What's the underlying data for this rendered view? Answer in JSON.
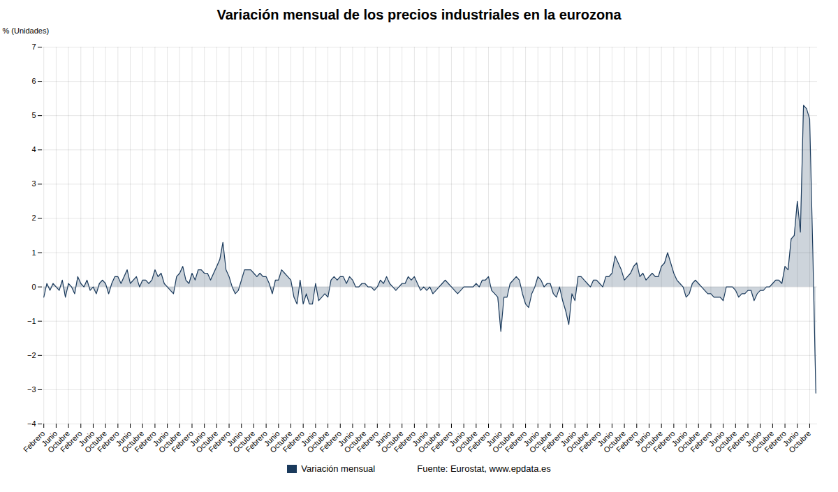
{
  "chart_data": {
    "type": "area",
    "title": "Variación mensual de los precios industriales en la eurozona",
    "ylabel": "% (Unidades)",
    "ylim": [
      -4,
      7
    ],
    "yticks": [
      -4,
      -3,
      -2,
      -1,
      0,
      1,
      2,
      3,
      4,
      5,
      6,
      7
    ],
    "grid": true,
    "legend": "bottom",
    "annotations": [
      "Fuente: Eurostat, www.epdata.es"
    ],
    "categories": [
      "Febrero",
      null,
      null,
      null,
      "Junio",
      null,
      null,
      null,
      "Octubre",
      null,
      null,
      null,
      "Febrero",
      null,
      null,
      null,
      "Junio",
      null,
      null,
      null,
      "Octubre",
      null,
      null,
      null,
      "Febrero",
      null,
      null,
      null,
      "Junio",
      null,
      null,
      null,
      "Octubre",
      null,
      null,
      null,
      "Febrero",
      null,
      null,
      null,
      "Junio",
      null,
      null,
      null,
      "Octubre",
      null,
      null,
      null,
      "Febrero",
      null,
      null,
      null,
      "Junio",
      null,
      null,
      null,
      "Octubre",
      null,
      null,
      null,
      "Febrero",
      null,
      null,
      null,
      "Junio",
      null,
      null,
      null,
      "Octubre",
      null,
      null,
      null,
      "Febrero",
      null,
      null,
      null,
      "Junio",
      null,
      null,
      null,
      "Octubre",
      null,
      null,
      null,
      "Febrero",
      null,
      null,
      null,
      "Junio",
      null,
      null,
      null,
      "Octubre",
      null,
      null,
      null,
      "Febrero",
      null,
      null,
      null,
      "Junio",
      null,
      null,
      null,
      "Octubre",
      null,
      null,
      null,
      "Febrero",
      null,
      null,
      null,
      "Junio",
      null,
      null,
      null,
      "Octubre",
      null,
      null,
      null,
      "Febrero",
      null,
      null,
      null,
      "Junio",
      null,
      null,
      null,
      "Octubre",
      null,
      null,
      null,
      "Febrero",
      null,
      null,
      null,
      "Junio",
      null,
      null,
      null,
      "Octubre",
      null,
      null,
      null,
      "Febrero",
      null,
      null,
      null,
      "Junio",
      null,
      null,
      null,
      "Octubre",
      null,
      null,
      null,
      "Febrero",
      null,
      null,
      null,
      "Junio",
      null,
      null,
      null,
      "Octubre",
      null,
      null,
      null,
      "Febrero",
      null,
      null,
      null,
      "Junio",
      null,
      null,
      null,
      "Octubre",
      null,
      null,
      null,
      "Febrero",
      null,
      null,
      null,
      "Junio",
      null,
      null,
      null,
      "Octubre",
      null,
      null,
      null,
      "Febrero",
      null,
      null,
      null,
      "Junio",
      null,
      null,
      null,
      "Octubre",
      null,
      null,
      null,
      "Febrero",
      null,
      null,
      null,
      "Junio",
      null,
      null,
      null,
      "Octubre",
      null,
      null,
      null,
      "Febrero",
      null,
      null,
      null,
      "Junio",
      null,
      null,
      null,
      "Octubre",
      null,
      null,
      null,
      "Febrero",
      null,
      null,
      null,
      "Junio",
      null,
      null,
      null,
      "Octubre",
      null,
      null,
      null,
      "Febrero",
      null,
      null,
      null,
      "Junio",
      null,
      null,
      null,
      "Octubre",
      null,
      null
    ],
    "series": [
      {
        "name": "Variación mensual",
        "color": "#1a3a5c",
        "values": [
          -0.3,
          0.1,
          -0.1,
          0.1,
          0.0,
          -0.1,
          0.2,
          -0.3,
          0.1,
          0.0,
          -0.2,
          0.3,
          0.1,
          0.0,
          0.2,
          -0.1,
          0.0,
          -0.2,
          0.1,
          0.2,
          0.1,
          -0.2,
          0.1,
          0.3,
          0.3,
          0.1,
          0.3,
          0.5,
          0.1,
          0.2,
          0.3,
          0.0,
          0.2,
          0.2,
          0.1,
          0.2,
          0.5,
          0.3,
          0.4,
          0.1,
          0.0,
          -0.1,
          -0.2,
          0.3,
          0.4,
          0.6,
          0.2,
          0.1,
          0.4,
          0.2,
          0.5,
          0.5,
          0.4,
          0.4,
          0.2,
          0.4,
          0.6,
          0.8,
          1.3,
          0.5,
          0.3,
          0.0,
          -0.2,
          -0.1,
          0.2,
          0.5,
          0.5,
          0.5,
          0.4,
          0.3,
          0.4,
          0.3,
          0.3,
          0.1,
          -0.2,
          0.2,
          0.2,
          0.5,
          0.4,
          0.3,
          0.2,
          -0.3,
          -0.5,
          0.2,
          -0.5,
          -0.2,
          -0.5,
          -0.5,
          0.1,
          -0.4,
          -0.3,
          -0.2,
          -0.3,
          0.2,
          0.3,
          0.2,
          0.3,
          0.3,
          0.1,
          0.3,
          0.2,
          0.0,
          0.0,
          0.1,
          0.1,
          0.0,
          0.0,
          -0.1,
          0.0,
          0.2,
          0.1,
          0.3,
          0.1,
          0.0,
          -0.1,
          0.0,
          0.1,
          0.1,
          0.3,
          0.2,
          0.3,
          0.1,
          -0.1,
          0.0,
          -0.1,
          0.0,
          -0.2,
          -0.1,
          0.0,
          0.1,
          0.2,
          0.1,
          0.0,
          -0.1,
          -0.2,
          -0.1,
          0.0,
          0.0,
          0.0,
          0.0,
          0.1,
          0.0,
          0.2,
          0.2,
          0.3,
          -0.1,
          -0.2,
          -0.3,
          -1.3,
          -0.3,
          -0.3,
          0.1,
          0.2,
          0.3,
          0.2,
          -0.2,
          -0.5,
          -0.6,
          -0.2,
          0.0,
          0.3,
          0.2,
          0.0,
          0.1,
          0.1,
          -0.2,
          -0.3,
          0.0,
          -0.4,
          -0.7,
          -1.1,
          -0.2,
          -0.4,
          0.3,
          0.3,
          0.2,
          0.1,
          0.0,
          0.2,
          0.2,
          0.1,
          0.0,
          0.3,
          0.3,
          0.4,
          0.9,
          0.7,
          0.5,
          0.2,
          0.3,
          0.4,
          0.6,
          0.7,
          0.3,
          0.4,
          0.2,
          0.3,
          0.4,
          0.3,
          0.3,
          0.6,
          0.7,
          1.0,
          0.7,
          0.4,
          0.2,
          0.1,
          0.0,
          -0.3,
          -0.2,
          0.1,
          0.2,
          0.1,
          0.0,
          -0.1,
          -0.2,
          -0.2,
          -0.3,
          -0.3,
          -0.3,
          -0.4,
          0.0,
          0.0,
          0.0,
          -0.1,
          -0.3,
          -0.2,
          -0.2,
          -0.1,
          -0.1,
          -0.4,
          -0.2,
          -0.1,
          -0.1,
          0.0,
          0.0,
          0.1,
          0.2,
          0.2,
          0.1,
          0.6,
          0.5,
          1.4,
          1.5,
          2.5,
          1.6,
          5.3,
          5.2,
          4.9,
          1.1,
          -3.1
        ]
      }
    ]
  }
}
